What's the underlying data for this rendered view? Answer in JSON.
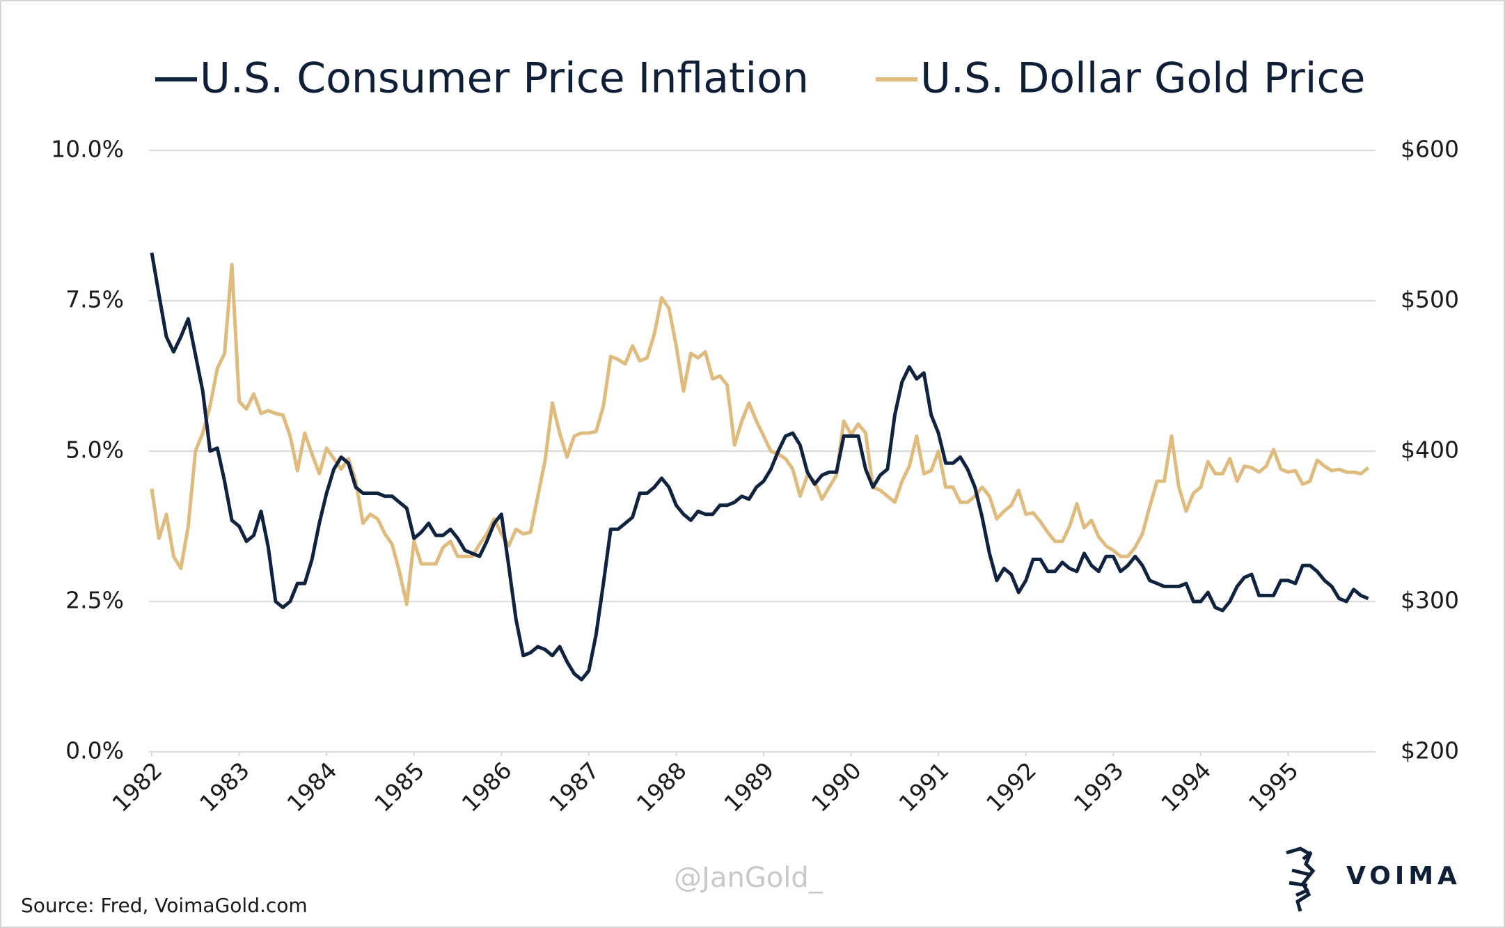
{
  "chart_data": {
    "type": "line",
    "source": "Source: Fred, VoimaGold.com",
    "watermark": "@JanGold_",
    "logo_text": "VOIMA",
    "legend": "top",
    "grid": true,
    "xlim": [
      1982,
      1996
    ],
    "xticks": [
      1982,
      1983,
      1984,
      1985,
      1986,
      1987,
      1988,
      1989,
      1990,
      1991,
      1992,
      1993,
      1994,
      1995
    ],
    "ylim": [
      0,
      10
    ],
    "yticks": [
      {
        "value": 0,
        "label": "0.0%"
      },
      {
        "value": 2.5,
        "label": "2.5%"
      },
      {
        "value": 5,
        "label": "5.0%"
      },
      {
        "value": 7.5,
        "label": "7.5%"
      },
      {
        "value": 10,
        "label": "10.0%"
      }
    ],
    "y2lim": [
      200,
      600
    ],
    "y2ticks": [
      {
        "value": 200,
        "label": "$200"
      },
      {
        "value": 300,
        "label": "$300"
      },
      {
        "value": 400,
        "label": "$400"
      },
      {
        "value": 500,
        "label": "$500"
      },
      {
        "value": 600,
        "label": "$600"
      }
    ],
    "x": [
      1982,
      1982.083,
      1982.167,
      1982.25,
      1982.333,
      1982.417,
      1982.5,
      1982.583,
      1982.667,
      1982.75,
      1982.833,
      1982.917,
      1983,
      1983.083,
      1983.167,
      1983.25,
      1983.333,
      1983.417,
      1983.5,
      1983.583,
      1983.667,
      1983.75,
      1983.833,
      1983.917,
      1984,
      1984.083,
      1984.167,
      1984.25,
      1984.333,
      1984.417,
      1984.5,
      1984.583,
      1984.667,
      1984.75,
      1984.833,
      1984.917,
      1985,
      1985.083,
      1985.167,
      1985.25,
      1985.333,
      1985.417,
      1985.5,
      1985.583,
      1985.667,
      1985.75,
      1985.833,
      1985.917,
      1986,
      1986.083,
      1986.167,
      1986.25,
      1986.333,
      1986.417,
      1986.5,
      1986.583,
      1986.667,
      1986.75,
      1986.833,
      1986.917,
      1987,
      1987.083,
      1987.167,
      1987.25,
      1987.333,
      1987.417,
      1987.5,
      1987.583,
      1987.667,
      1987.75,
      1987.833,
      1987.917,
      1988,
      1988.083,
      1988.167,
      1988.25,
      1988.333,
      1988.417,
      1988.5,
      1988.583,
      1988.667,
      1988.75,
      1988.833,
      1988.917,
      1989,
      1989.083,
      1989.167,
      1989.25,
      1989.333,
      1989.417,
      1989.5,
      1989.583,
      1989.667,
      1989.75,
      1989.833,
      1989.917,
      1990,
      1990.083,
      1990.167,
      1990.25,
      1990.333,
      1990.417,
      1990.5,
      1990.583,
      1990.667,
      1990.75,
      1990.833,
      1990.917,
      1991,
      1991.083,
      1991.167,
      1991.25,
      1991.333,
      1991.417,
      1991.5,
      1991.583,
      1991.667,
      1991.75,
      1991.833,
      1991.917,
      1992,
      1992.083,
      1992.167,
      1992.25,
      1992.333,
      1992.417,
      1992.5,
      1992.583,
      1992.667,
      1992.75,
      1992.833,
      1992.917,
      1993,
      1993.083,
      1993.167,
      1993.25,
      1993.333,
      1993.417,
      1993.5,
      1993.583,
      1993.667,
      1993.75,
      1993.833,
      1993.917,
      1994,
      1994.083,
      1994.167,
      1994.25,
      1994.333,
      1994.417,
      1994.5,
      1994.583,
      1994.667,
      1994.75,
      1994.833,
      1994.917,
      1995,
      1995.083,
      1995.167,
      1995.25,
      1995.333,
      1995.417,
      1995.5,
      1995.583,
      1995.667,
      1995.75,
      1995.833,
      1995.917
    ],
    "series": [
      {
        "name": "U.S. Consumer Price Inflation",
        "color": "#0f2340",
        "axis": "y",
        "values": [
          8.3,
          7.6,
          6.9,
          6.65,
          6.9,
          7.2,
          6.6,
          6.0,
          5.0,
          5.05,
          4.5,
          3.85,
          3.75,
          3.5,
          3.6,
          4.0,
          3.4,
          2.5,
          2.4,
          2.5,
          2.8,
          2.8,
          3.2,
          3.8,
          4.3,
          4.7,
          4.9,
          4.8,
          4.4,
          4.3,
          4.3,
          4.3,
          4.25,
          4.25,
          4.15,
          4.05,
          3.55,
          3.65,
          3.8,
          3.6,
          3.6,
          3.7,
          3.55,
          3.35,
          3.3,
          3.25,
          3.5,
          3.8,
          3.95,
          3.1,
          2.2,
          1.6,
          1.65,
          1.75,
          1.7,
          1.6,
          1.75,
          1.5,
          1.3,
          1.2,
          1.35,
          1.95,
          2.8,
          3.7,
          3.7,
          3.8,
          3.9,
          4.3,
          4.3,
          4.4,
          4.55,
          4.4,
          4.1,
          3.95,
          3.85,
          4.0,
          3.95,
          3.95,
          4.1,
          4.1,
          4.15,
          4.25,
          4.2,
          4.4,
          4.5,
          4.7,
          5.0,
          5.25,
          5.3,
          5.1,
          4.65,
          4.45,
          4.6,
          4.65,
          4.65,
          5.25,
          5.25,
          5.25,
          4.7,
          4.4,
          4.6,
          4.7,
          5.6,
          6.15,
          6.4,
          6.2,
          6.3,
          5.6,
          5.3,
          4.8,
          4.8,
          4.9,
          4.7,
          4.4,
          3.9,
          3.3,
          2.85,
          3.05,
          2.95,
          2.65,
          2.85,
          3.2,
          3.2,
          3.0,
          3.0,
          3.15,
          3.05,
          3.0,
          3.3,
          3.1,
          3.0,
          3.25,
          3.25,
          3.0,
          3.1,
          3.25,
          3.1,
          2.85,
          2.8,
          2.75,
          2.75,
          2.75,
          2.8,
          2.5,
          2.5,
          2.65,
          2.4,
          2.35,
          2.5,
          2.75,
          2.9,
          2.95,
          2.6,
          2.6,
          2.6,
          2.85,
          2.85,
          2.8,
          3.1,
          3.1,
          3.0,
          2.85,
          2.75,
          2.55,
          2.5,
          2.7,
          2.6,
          2.55
        ]
      },
      {
        "name": "U.S. Dollar Gold Price",
        "color": "#e0bb7e",
        "axis": "y2",
        "values": [
          375,
          342,
          358,
          330,
          322,
          350,
          400,
          412,
          430,
          455,
          465,
          524,
          433,
          428,
          438,
          425,
          427,
          425,
          424,
          410,
          387,
          412,
          398,
          385,
          402,
          395,
          388,
          395,
          380,
          352,
          358,
          355,
          345,
          338,
          320,
          298,
          340,
          325,
          325,
          325,
          336,
          340,
          330,
          330,
          330,
          338,
          345,
          355,
          345,
          337,
          348,
          345,
          346,
          370,
          394,
          432,
          412,
          396,
          410,
          412,
          412,
          413,
          430,
          463,
          461,
          458,
          470,
          460,
          462,
          478,
          502,
          495,
          470,
          440,
          465,
          462,
          466,
          448,
          450,
          444,
          404,
          420,
          432,
          420,
          410,
          400,
          398,
          395,
          388,
          370,
          384,
          380,
          368,
          376,
          384,
          420,
          411,
          418,
          412,
          376,
          374,
          370,
          366,
          380,
          390,
          410,
          385,
          387,
          400,
          376,
          376,
          366,
          366,
          370,
          376,
          370,
          355,
          360,
          364,
          374,
          358,
          359,
          353,
          346,
          340,
          340,
          350,
          365,
          349,
          354,
          343,
          337,
          334,
          330,
          330,
          336,
          345,
          363,
          380,
          380,
          410,
          376,
          360,
          372,
          376,
          393,
          385,
          385,
          395,
          380,
          390,
          389,
          386,
          390,
          401,
          388,
          386,
          387,
          378,
          380,
          394,
          390,
          387,
          388,
          386,
          386,
          385,
          389
        ]
      }
    ]
  }
}
